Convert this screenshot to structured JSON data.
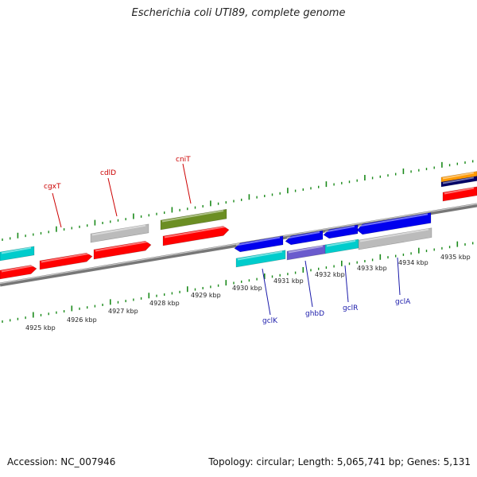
{
  "title": "Escherichia coli UTI89, complete genome",
  "footer": {
    "accession": "Accession: NC_007946",
    "stats": "Topology: circular; Length: 5,065,741 bp; Genes: 5,131"
  },
  "scale_labels": [
    "4925 kbp",
    "4926 kbp",
    "4927 kbp",
    "4928 kbp",
    "4929 kbp",
    "4930 kbp",
    "4931 kbp",
    "4932 kbp",
    "4933 kbp",
    "4934 kbp",
    "4935 kbp"
  ],
  "gene_labels": {
    "forward": [
      "cgxT",
      "cdlD",
      "cniT"
    ],
    "reverse": [
      "gclK",
      "ghbD",
      "gclR",
      "gclA"
    ]
  },
  "colors": {
    "backbone": "#888888",
    "tick": "#1a8a1a",
    "forward_label": "#cc0000",
    "reverse_label": "#1a1aaa",
    "cds_red": "#ff0000",
    "cds_blue": "#0000ee",
    "cyan": "#00cccc",
    "gray": "#bbbbbb",
    "olive": "#6b8e23",
    "purple": "#6a5acd",
    "orange": "#ff9900",
    "navy": "#000066"
  }
}
